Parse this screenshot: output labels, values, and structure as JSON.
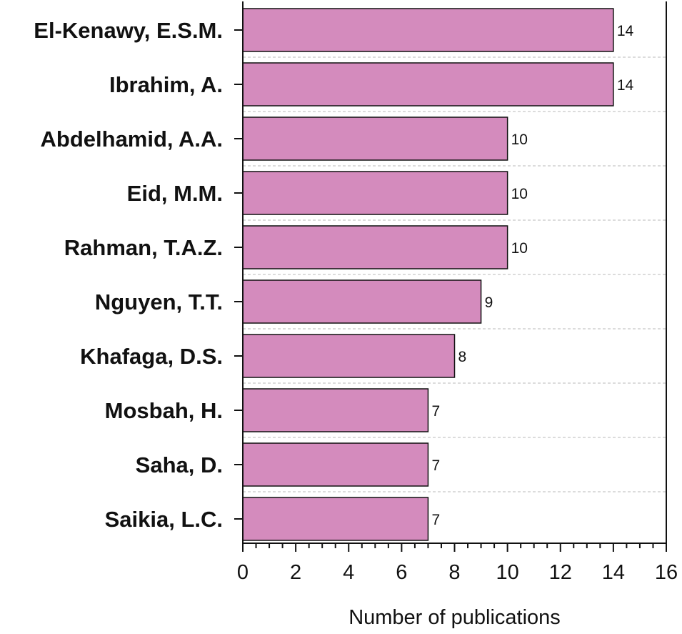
{
  "chart_data": {
    "type": "bar",
    "orientation": "horizontal",
    "categories": [
      "El-Kenawy, E.S.M.",
      "Ibrahim, A.",
      "Abdelhamid, A.A.",
      "Eid, M.M.",
      "Rahman, T.A.Z.",
      "Nguyen, T.T.",
      "Khafaga, D.S.",
      "Mosbah, H.",
      "Saha, D.",
      "Saikia, L.C."
    ],
    "values": [
      14,
      14,
      10,
      10,
      10,
      9,
      8,
      7,
      7,
      7
    ],
    "data_labels": [
      "14",
      "14",
      "10",
      "10",
      "10",
      "9",
      "8",
      "7",
      "7",
      "7"
    ],
    "title": "",
    "xlabel": "Number of publications",
    "ylabel": "",
    "xlim": [
      0,
      16
    ],
    "x_ticks": [
      "0",
      "2",
      "4",
      "6",
      "8",
      "10",
      "12",
      "14",
      "16"
    ],
    "grid": "horizontal dashed lines between bars",
    "bar_color": "#d48bbd",
    "bar_edge_color": "#111111"
  }
}
